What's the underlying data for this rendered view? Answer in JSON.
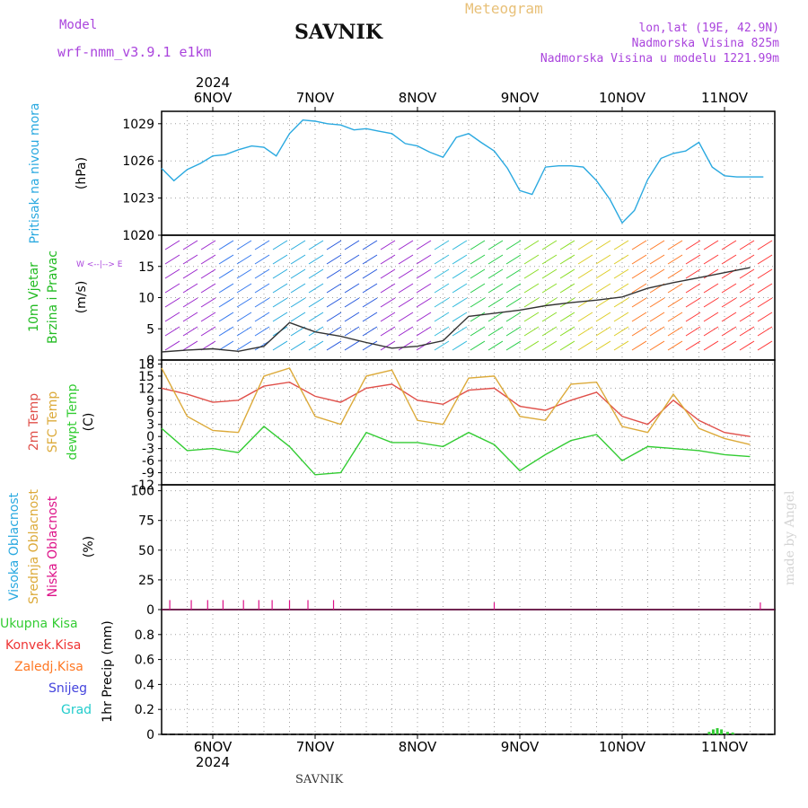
{
  "header": {
    "model_label": "Model",
    "model_name": "wrf-nmm_v3.9.1 e1km",
    "station": "SAVNIK",
    "product": "Meteogram",
    "coords": "lon,lat (19E, 42.9N)",
    "elevation": "Nadmorska Visina 825m",
    "model_elevation": "Nadmorska Visina u modelu 1221.99m"
  },
  "footer_station": "SAVNIK",
  "watermark": "made by Angel",
  "colors": {
    "pressure": "#2aa9e0",
    "wind_label": "#22bb22",
    "purple": "#aa44dd",
    "temp2m": "#e0504a",
    "sfc": "#dcaa3a",
    "dewpt": "#33cc33",
    "precip": "#33cc33",
    "cloud_low": "#dd1188"
  },
  "chart_data": [
    {
      "type": "line",
      "panel": "pressure",
      "ylabel_lines": [
        "Pritisak na nivou mora"
      ],
      "unit": "(hPa)",
      "ylim": [
        1020,
        1030
      ],
      "yticks": [
        1020,
        1023,
        1026,
        1029
      ],
      "x_days": [
        "6NOV",
        "7NOV",
        "8NOV",
        "9NOV",
        "10NOV",
        "11NOV"
      ],
      "x_year": "2024",
      "series": [
        {
          "x": [
            0.0,
            0.12,
            0.25,
            0.38,
            0.5,
            0.62,
            0.75,
            0.88,
            1.0,
            1.12,
            1.25,
            1.38,
            1.5,
            1.62,
            1.75,
            1.88,
            2.0,
            2.12,
            2.25,
            2.38,
            2.5,
            2.62,
            2.75,
            2.88,
            3.0,
            3.12,
            3.25,
            3.38,
            3.5,
            3.62,
            3.75,
            3.88,
            4.0,
            4.12,
            4.25,
            4.38,
            4.5,
            4.62,
            4.75,
            4.88,
            5.0,
            5.12,
            5.25,
            5.38,
            5.5,
            5.62,
            5.75,
            5.88,
            6.0
          ],
          "y": [
            1025.4,
            1024.4,
            1025.3,
            1025.8,
            1026.4,
            1026.5,
            1026.9,
            1027.2,
            1027.1,
            1026.4,
            1028.2,
            1029.3,
            1029.2,
            1029.0,
            1028.9,
            1028.5,
            1028.6,
            1028.4,
            1028.2,
            1027.4,
            1027.2,
            1026.7,
            1026.3,
            1027.9,
            1028.2,
            1027.5,
            1026.8,
            1025.4,
            1023.6,
            1023.3,
            1025.5,
            1025.6,
            1025.6,
            1025.5,
            1024.4,
            1022.9,
            1021.0,
            1022.0,
            1024.5,
            1026.2,
            1026.6,
            1026.8,
            1027.5,
            1025.5,
            1024.8,
            1024.7,
            1024.7,
            1024.7,
            1024.7
          ]
        }
      ]
    },
    {
      "type": "line",
      "panel": "wind",
      "ylabel_lines": [
        "10m Vjetar",
        "Brzina i Pravac"
      ],
      "unit": "(m/s)",
      "ylim": [
        0,
        20
      ],
      "yticks": [
        0,
        5,
        10,
        15,
        20
      ],
      "compass": "W <--|--> E",
      "series": [
        {
          "name": "Brzina",
          "x": [
            0.0,
            0.25,
            0.5,
            0.75,
            1.0,
            1.25,
            1.5,
            1.75,
            2.0,
            2.25,
            2.5,
            2.75,
            3.0,
            3.25,
            3.5,
            3.75,
            4.0,
            4.25,
            4.5,
            4.75,
            5.0,
            5.25,
            5.5,
            5.75,
            6.0
          ],
          "y": [
            1.3,
            1.6,
            1.8,
            1.4,
            2.2,
            6.0,
            4.5,
            3.8,
            2.8,
            1.9,
            2.2,
            3.1,
            7.0,
            7.5,
            8.0,
            8.7,
            9.2,
            9.6,
            10.1,
            11.5,
            12.4,
            13.2,
            14.0,
            14.8,
            14.3
          ]
        }
      ]
    },
    {
      "type": "line",
      "panel": "temperature",
      "ylabel_lines": [
        "2m Temp",
        "SFC Temp",
        "dewpt Temp"
      ],
      "unit": "(C)",
      "ylim": [
        -12,
        19
      ],
      "yticks": [
        -12,
        -9,
        -6,
        -3,
        0,
        3,
        6,
        9,
        12,
        15,
        18
      ],
      "series": [
        {
          "name": "2m Temp",
          "x": [
            0.0,
            0.25,
            0.5,
            0.75,
            1.0,
            1.25,
            1.5,
            1.75,
            2.0,
            2.25,
            2.5,
            2.75,
            3.0,
            3.25,
            3.5,
            3.75,
            4.0,
            4.25,
            4.5,
            4.75,
            5.0,
            5.25,
            5.5,
            5.75,
            6.0
          ],
          "y": [
            12.0,
            10.5,
            8.5,
            9.0,
            12.5,
            13.5,
            10.0,
            8.5,
            12.0,
            13.0,
            9.0,
            8.0,
            11.5,
            12.0,
            7.5,
            6.5,
            9.0,
            11.0,
            5.0,
            3.0,
            9.0,
            4.0,
            1.0,
            0.0,
            6.0
          ]
        },
        {
          "name": "SFC Temp",
          "x": [
            0.0,
            0.25,
            0.5,
            0.75,
            1.0,
            1.25,
            1.5,
            1.75,
            2.0,
            2.25,
            2.5,
            2.75,
            3.0,
            3.25,
            3.5,
            3.75,
            4.0,
            4.25,
            4.5,
            4.75,
            5.0,
            5.25,
            5.5,
            5.75,
            6.0
          ],
          "y": [
            17.0,
            5.0,
            1.5,
            1.0,
            15.0,
            17.0,
            5.0,
            3.0,
            15.0,
            16.5,
            4.0,
            3.0,
            14.5,
            15.0,
            5.0,
            4.0,
            13.0,
            13.5,
            2.5,
            1.0,
            10.5,
            2.0,
            -0.5,
            -2.0,
            8.0
          ]
        },
        {
          "name": "dewpt Temp",
          "x": [
            0.0,
            0.25,
            0.5,
            0.75,
            1.0,
            1.25,
            1.5,
            1.75,
            2.0,
            2.25,
            2.5,
            2.75,
            3.0,
            3.25,
            3.5,
            3.75,
            4.0,
            4.25,
            4.5,
            4.75,
            5.0,
            5.25,
            5.5,
            5.75,
            6.0
          ],
          "y": [
            2.0,
            -3.5,
            -3.0,
            -4.0,
            2.5,
            -2.5,
            -9.5,
            -9.0,
            1.0,
            -1.5,
            -1.5,
            -2.5,
            1.0,
            -2.0,
            -8.5,
            -4.5,
            -1.0,
            0.5,
            -6.0,
            -2.5,
            -3.0,
            -3.5,
            -4.5,
            -5.0,
            -3.0
          ]
        }
      ]
    },
    {
      "type": "bar",
      "panel": "clouds",
      "ylabel_lines": [
        "Visoka Oblacnost",
        "Srednja Oblacnost",
        "Niska Oblacnost"
      ],
      "unit": "(%)",
      "ylim": [
        0,
        105
      ],
      "yticks": [
        0,
        25,
        50,
        75,
        100
      ],
      "series": [
        {
          "name": "Niska Oblacnost",
          "x": [
            0.08,
            0.29,
            0.45,
            0.6,
            0.8,
            0.95,
            1.08,
            1.25,
            1.43,
            1.68,
            3.25,
            5.85,
            6.4
          ],
          "y": [
            8,
            8,
            8,
            8,
            8,
            8,
            8,
            8,
            8,
            8,
            6,
            6,
            2
          ]
        }
      ]
    },
    {
      "type": "bar",
      "panel": "precip",
      "ylabel_lines": [
        "1hr Precip (mm)"
      ],
      "legend": [
        "Ukupna Kisa",
        "Konvek.Kisa",
        "Zaledj.Kisa",
        "Snijeg",
        "Grad"
      ],
      "ylim": [
        0,
        1.0
      ],
      "yticks": [
        0,
        0.2,
        0.4,
        0.6,
        0.8
      ],
      "series": [
        {
          "name": "Ukupna Kisa",
          "x": [
            5.35,
            5.39,
            5.43,
            5.47,
            5.53,
            5.58
          ],
          "y": [
            0.02,
            0.04,
            0.05,
            0.04,
            0.02,
            0.015
          ]
        }
      ]
    }
  ]
}
